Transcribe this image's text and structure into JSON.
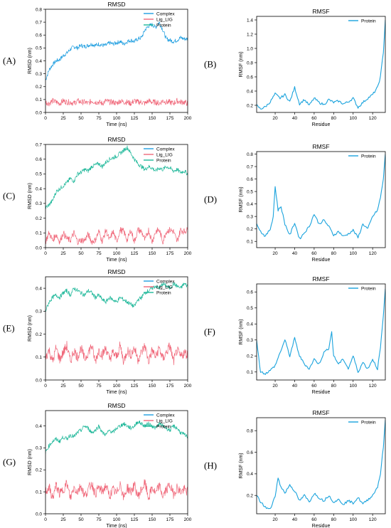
{
  "panel_labels": [
    "(A)",
    "(B)",
    "(C)",
    "(D)",
    "(E)",
    "(F)",
    "(G)",
    "(H)"
  ],
  "colors": {
    "complex": "#1f9ee0",
    "ligand": "#f0687a",
    "protein": "#1fb89a",
    "rmsf": "#1aa3dd",
    "axis": "#000000"
  },
  "chart_data": [
    {
      "panel": "(A)",
      "type": "line",
      "title": "RMSD",
      "xlabel": "Time (ns)",
      "ylabel": "RMSD (nm)",
      "xlim": [
        0,
        200
      ],
      "ylim": [
        0,
        0.8
      ],
      "xticks": [
        "0",
        "25",
        "50",
        "75",
        "100",
        "125",
        "150",
        "175",
        "200"
      ],
      "yticks": [
        "0.0",
        "0.1",
        "0.2",
        "0.3",
        "0.4",
        "0.5",
        "0.6",
        "0.7",
        "0.8"
      ],
      "legend": [
        "Complex",
        "Lig_LIG",
        "Protein"
      ],
      "legend_position": "top-right",
      "x": [
        0,
        5,
        10,
        15,
        20,
        25,
        30,
        35,
        40,
        45,
        50,
        55,
        60,
        65,
        70,
        75,
        80,
        85,
        90,
        95,
        100,
        105,
        110,
        115,
        120,
        125,
        130,
        135,
        140,
        145,
        150,
        155,
        160,
        165,
        170,
        175,
        180,
        185,
        190,
        195,
        200
      ],
      "series": [
        {
          "name": "Complex",
          "values": [
            0.25,
            0.33,
            0.37,
            0.4,
            0.41,
            0.44,
            0.46,
            0.49,
            0.51,
            0.5,
            0.52,
            0.51,
            0.52,
            0.53,
            0.52,
            0.53,
            0.52,
            0.52,
            0.54,
            0.53,
            0.54,
            0.55,
            0.53,
            0.55,
            0.56,
            0.55,
            0.57,
            0.58,
            0.64,
            0.67,
            0.68,
            0.66,
            0.7,
            0.64,
            0.57,
            0.56,
            0.55,
            0.56,
            0.58,
            0.57,
            0.57
          ]
        },
        {
          "name": "Lig_LIG",
          "values": [
            0.08,
            0.07,
            0.09,
            0.08,
            0.07,
            0.09,
            0.08,
            0.08,
            0.07,
            0.09,
            0.08,
            0.08,
            0.07,
            0.09,
            0.08,
            0.08,
            0.07,
            0.09,
            0.08,
            0.08,
            0.07,
            0.09,
            0.08,
            0.08,
            0.07,
            0.09,
            0.08,
            0.08,
            0.07,
            0.09,
            0.08,
            0.08,
            0.07,
            0.09,
            0.08,
            0.08,
            0.07,
            0.09,
            0.08,
            0.08,
            0.07
          ]
        }
      ]
    },
    {
      "panel": "(B)",
      "type": "line",
      "title": "RMSF",
      "xlabel": "Residue",
      "ylabel": "RMSF (nm)",
      "xlim": [
        1,
        133
      ],
      "ylim": [
        0.1,
        1.45
      ],
      "xticks": [
        "20",
        "40",
        "60",
        "80",
        "100",
        "120"
      ],
      "yticks": [
        "0.2",
        "0.4",
        "0.6",
        "0.8",
        "1.0",
        "1.2",
        "1.4"
      ],
      "legend": [
        "Protein"
      ],
      "legend_position": "top-right",
      "x": [
        1,
        5,
        10,
        15,
        20,
        25,
        30,
        35,
        40,
        45,
        50,
        55,
        60,
        65,
        70,
        75,
        80,
        85,
        90,
        95,
        100,
        105,
        110,
        115,
        120,
        125,
        128,
        131,
        133
      ],
      "series": [
        {
          "name": "Protein",
          "values": [
            0.2,
            0.15,
            0.18,
            0.25,
            0.36,
            0.3,
            0.35,
            0.25,
            0.45,
            0.22,
            0.28,
            0.2,
            0.3,
            0.24,
            0.21,
            0.28,
            0.24,
            0.26,
            0.22,
            0.25,
            0.3,
            0.17,
            0.24,
            0.3,
            0.35,
            0.45,
            0.6,
            0.95,
            1.4
          ]
        }
      ]
    },
    {
      "panel": "(C)",
      "type": "line",
      "title": "RMSD",
      "xlabel": "Time (ns)",
      "ylabel": "RMSD (nm)",
      "xlim": [
        0,
        200
      ],
      "ylim": [
        0,
        0.7
      ],
      "xticks": [
        "0",
        "25",
        "50",
        "75",
        "100",
        "125",
        "150",
        "175",
        "200"
      ],
      "yticks": [
        "0.0",
        "0.1",
        "0.2",
        "0.3",
        "0.4",
        "0.5",
        "0.6",
        "0.7"
      ],
      "legend": [
        "Complex",
        "Lig_LIG",
        "Protein"
      ],
      "legend_position": "top-right",
      "x": [
        0,
        5,
        10,
        15,
        20,
        25,
        30,
        35,
        40,
        45,
        50,
        55,
        60,
        65,
        70,
        75,
        80,
        85,
        90,
        95,
        100,
        105,
        110,
        115,
        120,
        125,
        130,
        135,
        140,
        145,
        150,
        155,
        160,
        165,
        170,
        175,
        180,
        185,
        190,
        195,
        200
      ],
      "series": [
        {
          "name": "Protein",
          "values": [
            0.27,
            0.29,
            0.32,
            0.38,
            0.4,
            0.42,
            0.44,
            0.47,
            0.45,
            0.5,
            0.51,
            0.53,
            0.52,
            0.55,
            0.56,
            0.57,
            0.55,
            0.58,
            0.6,
            0.61,
            0.62,
            0.64,
            0.66,
            0.68,
            0.64,
            0.6,
            0.57,
            0.55,
            0.53,
            0.55,
            0.54,
            0.52,
            0.54,
            0.53,
            0.55,
            0.54,
            0.52,
            0.53,
            0.51,
            0.52,
            0.5
          ]
        },
        {
          "name": "Lig_LIG",
          "values": [
            0.04,
            0.1,
            0.05,
            0.09,
            0.04,
            0.1,
            0.06,
            0.05,
            0.1,
            0.04,
            0.05,
            0.05,
            0.09,
            0.04,
            0.05,
            0.11,
            0.04,
            0.12,
            0.05,
            0.11,
            0.04,
            0.12,
            0.11,
            0.05,
            0.12,
            0.04,
            0.12,
            0.11,
            0.05,
            0.12,
            0.04,
            0.11,
            0.12,
            0.04,
            0.11,
            0.12,
            0.11,
            0.04,
            0.12,
            0.11,
            0.12
          ]
        }
      ]
    },
    {
      "panel": "(D)",
      "type": "line",
      "title": "RMSF",
      "xlabel": "Residue",
      "ylabel": "RMSF (nm)",
      "xlim": [
        1,
        133
      ],
      "ylim": [
        0.05,
        0.82
      ],
      "xticks": [
        "20",
        "40",
        "60",
        "80",
        "100",
        "120"
      ],
      "yticks": [
        "0.1",
        "0.2",
        "0.3",
        "0.4",
        "0.5",
        "0.6",
        "0.7",
        "0.8"
      ],
      "legend": [
        "Protein"
      ],
      "legend_position": "top-right",
      "x": [
        1,
        5,
        10,
        15,
        18,
        20,
        23,
        26,
        30,
        35,
        40,
        45,
        50,
        55,
        60,
        65,
        70,
        75,
        80,
        85,
        90,
        95,
        100,
        105,
        110,
        115,
        120,
        125,
        128,
        131,
        133
      ],
      "series": [
        {
          "name": "Protein",
          "values": [
            0.25,
            0.18,
            0.14,
            0.2,
            0.3,
            0.54,
            0.35,
            0.38,
            0.24,
            0.15,
            0.25,
            0.12,
            0.17,
            0.22,
            0.32,
            0.24,
            0.27,
            0.22,
            0.15,
            0.18,
            0.14,
            0.16,
            0.19,
            0.13,
            0.24,
            0.2,
            0.3,
            0.35,
            0.45,
            0.6,
            0.8
          ]
        }
      ]
    },
    {
      "panel": "(E)",
      "type": "line",
      "title": "RMSD",
      "xlabel": "Time (ns)",
      "ylabel": "RMSD (nm)",
      "xlim": [
        0,
        200
      ],
      "ylim": [
        0,
        0.45
      ],
      "xticks": [
        "0",
        "25",
        "50",
        "75",
        "100",
        "125",
        "150",
        "175",
        "200"
      ],
      "yticks": [
        "0.0",
        "0.1",
        "0.2",
        "0.3",
        "0.4"
      ],
      "legend": [
        "Complex",
        "Lig_LIG",
        "Protein"
      ],
      "legend_position": "top-right",
      "x": [
        0,
        5,
        10,
        15,
        20,
        25,
        30,
        35,
        40,
        45,
        50,
        55,
        60,
        65,
        70,
        75,
        80,
        85,
        90,
        95,
        100,
        105,
        110,
        115,
        120,
        125,
        130,
        135,
        140,
        145,
        150,
        155,
        160,
        165,
        170,
        175,
        180,
        185,
        190,
        195,
        200
      ],
      "series": [
        {
          "name": "Protein",
          "values": [
            0.3,
            0.34,
            0.36,
            0.37,
            0.36,
            0.38,
            0.39,
            0.37,
            0.4,
            0.39,
            0.38,
            0.37,
            0.39,
            0.38,
            0.36,
            0.37,
            0.35,
            0.34,
            0.36,
            0.35,
            0.34,
            0.36,
            0.35,
            0.34,
            0.33,
            0.32,
            0.35,
            0.36,
            0.38,
            0.39,
            0.4,
            0.41,
            0.4,
            0.42,
            0.41,
            0.4,
            0.42,
            0.41,
            0.4,
            0.42,
            0.41
          ]
        },
        {
          "name": "Lig_LIG",
          "values": [
            0.1,
            0.13,
            0.08,
            0.14,
            0.09,
            0.12,
            0.15,
            0.08,
            0.13,
            0.1,
            0.14,
            0.09,
            0.12,
            0.15,
            0.08,
            0.13,
            0.11,
            0.14,
            0.09,
            0.12,
            0.1,
            0.15,
            0.08,
            0.13,
            0.11,
            0.14,
            0.09,
            0.12,
            0.15,
            0.08,
            0.13,
            0.1,
            0.14,
            0.09,
            0.12,
            0.15,
            0.08,
            0.13,
            0.1,
            0.12,
            0.11
          ]
        }
      ]
    },
    {
      "panel": "(F)",
      "type": "line",
      "title": "RMSF",
      "xlabel": "Residue",
      "ylabel": "RMSF (nm)",
      "xlim": [
        1,
        133
      ],
      "ylim": [
        0.05,
        0.65
      ],
      "xticks": [
        "20",
        "40",
        "60",
        "80",
        "100",
        "120"
      ],
      "yticks": [
        "0.1",
        "0.2",
        "0.3",
        "0.4",
        "0.5",
        "0.6"
      ],
      "legend": [
        "Protein"
      ],
      "legend_position": "top-right",
      "x": [
        1,
        5,
        10,
        15,
        20,
        25,
        30,
        35,
        40,
        45,
        50,
        55,
        60,
        65,
        70,
        75,
        78,
        80,
        85,
        90,
        95,
        100,
        105,
        110,
        115,
        120,
        125,
        128,
        131,
        133
      ],
      "series": [
        {
          "name": "Protein",
          "values": [
            0.3,
            0.1,
            0.09,
            0.11,
            0.14,
            0.22,
            0.3,
            0.2,
            0.31,
            0.2,
            0.15,
            0.12,
            0.18,
            0.15,
            0.22,
            0.25,
            0.35,
            0.2,
            0.15,
            0.18,
            0.12,
            0.2,
            0.1,
            0.16,
            0.12,
            0.18,
            0.12,
            0.25,
            0.45,
            0.62
          ]
        }
      ]
    },
    {
      "panel": "(G)",
      "type": "line",
      "title": "RMSD",
      "xlabel": "Time (ns)",
      "ylabel": "RMSD (nm)",
      "xlim": [
        0,
        200
      ],
      "ylim": [
        0,
        0.47
      ],
      "xticks": [
        "0",
        "25",
        "50",
        "75",
        "100",
        "125",
        "150",
        "175",
        "200"
      ],
      "yticks": [
        "0.0",
        "0.1",
        "0.2",
        "0.3",
        "0.4"
      ],
      "legend": [
        "Complex",
        "Lig_LIG",
        "Protein"
      ],
      "legend_position": "top-right",
      "x": [
        0,
        5,
        10,
        15,
        20,
        25,
        30,
        35,
        40,
        45,
        50,
        55,
        60,
        65,
        70,
        75,
        80,
        85,
        90,
        95,
        100,
        105,
        110,
        115,
        120,
        125,
        130,
        135,
        140,
        145,
        150,
        155,
        160,
        165,
        170,
        175,
        180,
        185,
        190,
        195,
        200
      ],
      "series": [
        {
          "name": "Protein",
          "values": [
            0.28,
            0.31,
            0.33,
            0.34,
            0.33,
            0.35,
            0.34,
            0.36,
            0.35,
            0.37,
            0.38,
            0.4,
            0.39,
            0.37,
            0.38,
            0.4,
            0.37,
            0.36,
            0.38,
            0.37,
            0.39,
            0.4,
            0.41,
            0.4,
            0.39,
            0.4,
            0.42,
            0.41,
            0.4,
            0.41,
            0.4,
            0.39,
            0.41,
            0.4,
            0.39,
            0.38,
            0.4,
            0.39,
            0.37,
            0.36,
            0.35
          ]
        },
        {
          "name": "Lig_LIG",
          "values": [
            0.1,
            0.12,
            0.07,
            0.13,
            0.09,
            0.11,
            0.14,
            0.07,
            0.12,
            0.1,
            0.13,
            0.08,
            0.11,
            0.14,
            0.09,
            0.12,
            0.1,
            0.13,
            0.08,
            0.11,
            0.09,
            0.14,
            0.07,
            0.12,
            0.1,
            0.13,
            0.08,
            0.11,
            0.14,
            0.07,
            0.12,
            0.09,
            0.13,
            0.08,
            0.11,
            0.13,
            0.09,
            0.12,
            0.1,
            0.11,
            0.1
          ]
        }
      ]
    },
    {
      "panel": "(H)",
      "type": "line",
      "title": "RMSF",
      "xlabel": "Residue",
      "ylabel": "RMSF (nm)",
      "xlim": [
        1,
        133
      ],
      "ylim": [
        0.03,
        0.92
      ],
      "xticks": [
        "20",
        "40",
        "60",
        "80",
        "100",
        "120"
      ],
      "yticks": [
        "0.2",
        "0.4",
        "0.6",
        "0.8"
      ],
      "legend": [
        "Protein"
      ],
      "legend_position": "top-right",
      "x": [
        1,
        5,
        10,
        15,
        20,
        23,
        25,
        30,
        35,
        40,
        45,
        50,
        55,
        60,
        65,
        70,
        75,
        80,
        85,
        90,
        95,
        100,
        105,
        110,
        115,
        120,
        125,
        128,
        131,
        133
      ],
      "series": [
        {
          "name": "Protein",
          "values": [
            0.2,
            0.14,
            0.09,
            0.07,
            0.2,
            0.36,
            0.3,
            0.22,
            0.3,
            0.24,
            0.15,
            0.2,
            0.14,
            0.22,
            0.18,
            0.15,
            0.2,
            0.14,
            0.16,
            0.12,
            0.15,
            0.13,
            0.18,
            0.12,
            0.16,
            0.2,
            0.28,
            0.4,
            0.65,
            0.9
          ]
        }
      ]
    }
  ]
}
